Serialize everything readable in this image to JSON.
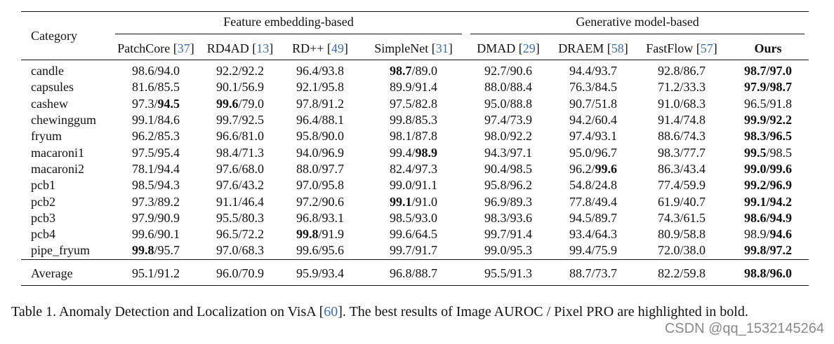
{
  "table": {
    "category_header": "Category",
    "groups": {
      "feature": "Feature embedding-based",
      "generative": "Generative model-based"
    },
    "methods": [
      {
        "name": "PatchCore",
        "ref": "37"
      },
      {
        "name": "RD4AD",
        "ref": "13"
      },
      {
        "name": "RD++",
        "ref": "49"
      },
      {
        "name": "SimpleNet",
        "ref": "31"
      },
      {
        "name": "DMAD",
        "ref": "29"
      },
      {
        "name": "DRAEM",
        "ref": "58"
      },
      {
        "name": "FastFlow",
        "ref": "57"
      },
      {
        "name": "Ours",
        "ref": ""
      }
    ],
    "rows": [
      {
        "category": "candle",
        "cells": [
          {
            "a": "98.6",
            "b": "94.0",
            "ba": false,
            "bb": false
          },
          {
            "a": "92.2",
            "b": "92.2",
            "ba": false,
            "bb": false
          },
          {
            "a": "96.4",
            "b": "93.8",
            "ba": false,
            "bb": false
          },
          {
            "a": "98.7",
            "b": "89.0",
            "ba": true,
            "bb": false
          },
          {
            "a": "92.7",
            "b": "90.6",
            "ba": false,
            "bb": false
          },
          {
            "a": "94.4",
            "b": "93.7",
            "ba": false,
            "bb": false
          },
          {
            "a": "92.8",
            "b": "86.7",
            "ba": false,
            "bb": false
          },
          {
            "a": "98.7",
            "b": "97.0",
            "ba": true,
            "bb": true
          }
        ]
      },
      {
        "category": "capsules",
        "cells": [
          {
            "a": "81.6",
            "b": "85.5",
            "ba": false,
            "bb": false
          },
          {
            "a": "90.1",
            "b": "56.9",
            "ba": false,
            "bb": false
          },
          {
            "a": "92.1",
            "b": "95.8",
            "ba": false,
            "bb": false
          },
          {
            "a": "89.9",
            "b": "91.4",
            "ba": false,
            "bb": false
          },
          {
            "a": "88.0",
            "b": "88.4",
            "ba": false,
            "bb": false
          },
          {
            "a": "76.3",
            "b": "84.5",
            "ba": false,
            "bb": false
          },
          {
            "a": "71.2",
            "b": "33.3",
            "ba": false,
            "bb": false
          },
          {
            "a": "97.9",
            "b": "98.7",
            "ba": true,
            "bb": true
          }
        ]
      },
      {
        "category": "cashew",
        "cells": [
          {
            "a": "97.3",
            "b": "94.5",
            "ba": false,
            "bb": true
          },
          {
            "a": "99.6",
            "b": "79.0",
            "ba": true,
            "bb": false
          },
          {
            "a": "97.8",
            "b": "91.2",
            "ba": false,
            "bb": false
          },
          {
            "a": "97.5",
            "b": "82.8",
            "ba": false,
            "bb": false
          },
          {
            "a": "95.0",
            "b": "88.8",
            "ba": false,
            "bb": false
          },
          {
            "a": "90.7",
            "b": "51.8",
            "ba": false,
            "bb": false
          },
          {
            "a": "91.0",
            "b": "68.3",
            "ba": false,
            "bb": false
          },
          {
            "a": "96.5",
            "b": "91.8",
            "ba": false,
            "bb": false
          }
        ]
      },
      {
        "category": "chewinggum",
        "cells": [
          {
            "a": "99.1",
            "b": "84.6",
            "ba": false,
            "bb": false
          },
          {
            "a": "99.7",
            "b": "92.5",
            "ba": false,
            "bb": false
          },
          {
            "a": "96.4",
            "b": "88.1",
            "ba": false,
            "bb": false
          },
          {
            "a": "99.8",
            "b": "85.3",
            "ba": false,
            "bb": false
          },
          {
            "a": "97.4",
            "b": "73.9",
            "ba": false,
            "bb": false
          },
          {
            "a": "94.2",
            "b": "60.4",
            "ba": false,
            "bb": false
          },
          {
            "a": "91.4",
            "b": "74.8",
            "ba": false,
            "bb": false
          },
          {
            "a": "99.9",
            "b": "92.2",
            "ba": true,
            "bb": true
          }
        ]
      },
      {
        "category": "fryum",
        "cells": [
          {
            "a": "96.2",
            "b": "85.3",
            "ba": false,
            "bb": false
          },
          {
            "a": "96.6",
            "b": "81.0",
            "ba": false,
            "bb": false
          },
          {
            "a": "95.8",
            "b": "90.0",
            "ba": false,
            "bb": false
          },
          {
            "a": "98.1",
            "b": "87.8",
            "ba": false,
            "bb": false
          },
          {
            "a": "98.0",
            "b": "92.2",
            "ba": false,
            "bb": false
          },
          {
            "a": "97.4",
            "b": "93.1",
            "ba": false,
            "bb": false
          },
          {
            "a": "88.6",
            "b": "74.3",
            "ba": false,
            "bb": false
          },
          {
            "a": "98.3",
            "b": "96.5",
            "ba": true,
            "bb": true
          }
        ]
      },
      {
        "category": "macaroni1",
        "cells": [
          {
            "a": "97.5",
            "b": "95.4",
            "ba": false,
            "bb": false
          },
          {
            "a": "98.4",
            "b": "71.3",
            "ba": false,
            "bb": false
          },
          {
            "a": "94.0",
            "b": "96.9",
            "ba": false,
            "bb": false
          },
          {
            "a": "99.4",
            "b": "98.9",
            "ba": false,
            "bb": true
          },
          {
            "a": "94.3",
            "b": "97.1",
            "ba": false,
            "bb": false
          },
          {
            "a": "95.0",
            "b": "96.7",
            "ba": false,
            "bb": false
          },
          {
            "a": "98.3",
            "b": "77.7",
            "ba": false,
            "bb": false
          },
          {
            "a": "99.5",
            "b": "98.5",
            "ba": true,
            "bb": false
          }
        ]
      },
      {
        "category": "macaroni2",
        "cells": [
          {
            "a": "78.1",
            "b": "94.4",
            "ba": false,
            "bb": false
          },
          {
            "a": "97.6",
            "b": "68.0",
            "ba": false,
            "bb": false
          },
          {
            "a": "88.0",
            "b": "97.7",
            "ba": false,
            "bb": false
          },
          {
            "a": "82.4",
            "b": "97.3",
            "ba": false,
            "bb": false
          },
          {
            "a": "90.4",
            "b": "98.5",
            "ba": false,
            "bb": false
          },
          {
            "a": "96.2",
            "b": "99.6",
            "ba": false,
            "bb": true
          },
          {
            "a": "86.3",
            "b": "43.4",
            "ba": false,
            "bb": false
          },
          {
            "a": "99.0",
            "b": "99.6",
            "ba": true,
            "bb": true
          }
        ]
      },
      {
        "category": "pcb1",
        "cells": [
          {
            "a": "98.5",
            "b": "94.3",
            "ba": false,
            "bb": false
          },
          {
            "a": "97.6",
            "b": "43.2",
            "ba": false,
            "bb": false
          },
          {
            "a": "97.0",
            "b": "95.8",
            "ba": false,
            "bb": false
          },
          {
            "a": "99.0",
            "b": "91.1",
            "ba": false,
            "bb": false
          },
          {
            "a": "95.8",
            "b": "96.2",
            "ba": false,
            "bb": false
          },
          {
            "a": "54.8",
            "b": "24.8",
            "ba": false,
            "bb": false
          },
          {
            "a": "77.4",
            "b": "59.9",
            "ba": false,
            "bb": false
          },
          {
            "a": "99.2",
            "b": "96.9",
            "ba": true,
            "bb": true
          }
        ]
      },
      {
        "category": "pcb2",
        "cells": [
          {
            "a": "97.3",
            "b": "89.2",
            "ba": false,
            "bb": false
          },
          {
            "a": "91.1",
            "b": "46.4",
            "ba": false,
            "bb": false
          },
          {
            "a": "97.2",
            "b": "90.6",
            "ba": false,
            "bb": false
          },
          {
            "a": "99.1",
            "b": "91.0",
            "ba": true,
            "bb": false
          },
          {
            "a": "96.9",
            "b": "89.3",
            "ba": false,
            "bb": false
          },
          {
            "a": "77.8",
            "b": "49.4",
            "ba": false,
            "bb": false
          },
          {
            "a": "61.9",
            "b": "40.7",
            "ba": false,
            "bb": false
          },
          {
            "a": "99.1",
            "b": "94.2",
            "ba": true,
            "bb": true
          }
        ]
      },
      {
        "category": "pcb3",
        "cells": [
          {
            "a": "97.9",
            "b": "90.9",
            "ba": false,
            "bb": false
          },
          {
            "a": "95.5",
            "b": "80.3",
            "ba": false,
            "bb": false
          },
          {
            "a": "96.8",
            "b": "93.1",
            "ba": false,
            "bb": false
          },
          {
            "a": "98.5",
            "b": "93.0",
            "ba": false,
            "bb": false
          },
          {
            "a": "98.3",
            "b": "93.6",
            "ba": false,
            "bb": false
          },
          {
            "a": "94.5",
            "b": "89.7",
            "ba": false,
            "bb": false
          },
          {
            "a": "74.3",
            "b": "61.5",
            "ba": false,
            "bb": false
          },
          {
            "a": "98.6",
            "b": "94.9",
            "ba": true,
            "bb": true
          }
        ]
      },
      {
        "category": "pcb4",
        "cells": [
          {
            "a": "99.6",
            "b": "90.1",
            "ba": false,
            "bb": false
          },
          {
            "a": "96.5",
            "b": "72.2",
            "ba": false,
            "bb": false
          },
          {
            "a": "99.8",
            "b": "91.9",
            "ba": true,
            "bb": false
          },
          {
            "a": "99.6",
            "b": "64.5",
            "ba": false,
            "bb": false
          },
          {
            "a": "99.7",
            "b": "91.4",
            "ba": false,
            "bb": false
          },
          {
            "a": "93.4",
            "b": "64.3",
            "ba": false,
            "bb": false
          },
          {
            "a": "80.9",
            "b": "58.8",
            "ba": false,
            "bb": false
          },
          {
            "a": "98.9",
            "b": "94.6",
            "ba": false,
            "bb": true
          }
        ]
      },
      {
        "category": "pipe_fryum",
        "cells": [
          {
            "a": "99.8",
            "b": "95.7",
            "ba": true,
            "bb": false
          },
          {
            "a": "97.0",
            "b": "68.3",
            "ba": false,
            "bb": false
          },
          {
            "a": "99.6",
            "b": "95.6",
            "ba": false,
            "bb": false
          },
          {
            "a": "99.7",
            "b": "91.7",
            "ba": false,
            "bb": false
          },
          {
            "a": "99.0",
            "b": "95.3",
            "ba": false,
            "bb": false
          },
          {
            "a": "99.4",
            "b": "75.9",
            "ba": false,
            "bb": false
          },
          {
            "a": "72.0",
            "b": "38.0",
            "ba": false,
            "bb": false
          },
          {
            "a": "99.8",
            "b": "97.2",
            "ba": true,
            "bb": true
          }
        ]
      }
    ],
    "average": {
      "category": "Average",
      "cells": [
        {
          "a": "95.1",
          "b": "91.2",
          "ba": false,
          "bb": false
        },
        {
          "a": "96.0",
          "b": "70.9",
          "ba": false,
          "bb": false
        },
        {
          "a": "95.9",
          "b": "93.4",
          "ba": false,
          "bb": false
        },
        {
          "a": "96.8",
          "b": "88.7",
          "ba": false,
          "bb": false
        },
        {
          "a": "95.5",
          "b": "91.3",
          "ba": false,
          "bb": false
        },
        {
          "a": "88.7",
          "b": "73.7",
          "ba": false,
          "bb": false
        },
        {
          "a": "82.2",
          "b": "59.8",
          "ba": false,
          "bb": false
        },
        {
          "a": "98.8",
          "b": "96.0",
          "ba": true,
          "bb": true
        }
      ]
    }
  },
  "caption": {
    "prefix": "Table 1. Anomaly Detection and Localization on VisA [",
    "ref": "60",
    "suffix": "]. The best results of Image AUROC / Pixel PRO are highlighted in bold."
  },
  "watermark": "CSDN @qq_1532145264"
}
